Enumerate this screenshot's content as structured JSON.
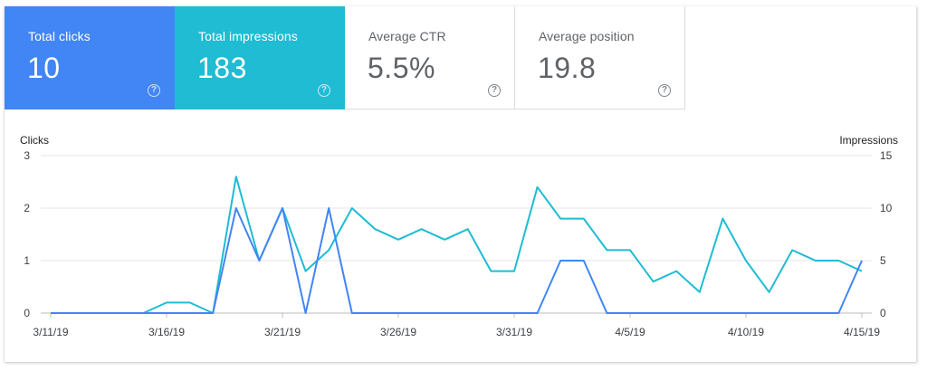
{
  "metrics": [
    {
      "label": "Total clicks",
      "value": "10",
      "color": "#4285f4",
      "active": true
    },
    {
      "label": "Total impressions",
      "value": "183",
      "color": "#1fbcd3",
      "active": true
    },
    {
      "label": "Average CTR",
      "value": "5.5%",
      "active": false
    },
    {
      "label": "Average position",
      "value": "19.8",
      "active": false
    }
  ],
  "help_glyph": "?",
  "help_icon": "help-circle-icon",
  "chart_data": {
    "type": "line",
    "ylabel_left": "Clicks",
    "ylabel_right": "Impressions",
    "ylim_left": [
      0,
      3
    ],
    "ylim_right": [
      0,
      15
    ],
    "yticks_left": [
      "0",
      "1",
      "2",
      "3"
    ],
    "yticks_right": [
      "0",
      "5",
      "10",
      "15"
    ],
    "xtick_labels": [
      "3/11/19",
      "3/16/19",
      "3/21/19",
      "3/26/19",
      "3/31/19",
      "4/5/19",
      "4/10/19",
      "4/15/19"
    ],
    "x": [
      "3/11/19",
      "3/12/19",
      "3/13/19",
      "3/14/19",
      "3/15/19",
      "3/16/19",
      "3/17/19",
      "3/18/19",
      "3/19/19",
      "3/20/19",
      "3/21/19",
      "3/22/19",
      "3/23/19",
      "3/24/19",
      "3/25/19",
      "3/26/19",
      "3/27/19",
      "3/28/19",
      "3/29/19",
      "3/30/19",
      "3/31/19",
      "4/1/19",
      "4/2/19",
      "4/3/19",
      "4/4/19",
      "4/5/19",
      "4/6/19",
      "4/7/19",
      "4/8/19",
      "4/9/19",
      "4/10/19",
      "4/11/19",
      "4/12/19",
      "4/13/19",
      "4/14/19",
      "4/15/19"
    ],
    "grid": true,
    "series": [
      {
        "name": "Clicks",
        "axis": "left",
        "color": "#4285f4",
        "values": [
          0,
          0,
          0,
          0,
          0,
          0,
          0,
          0,
          2,
          1,
          2,
          0,
          2,
          0,
          0,
          0,
          0,
          0,
          0,
          0,
          0,
          0,
          1,
          1,
          0,
          0,
          0,
          0,
          0,
          0,
          0,
          0,
          0,
          0,
          0,
          1
        ]
      },
      {
        "name": "Impressions",
        "axis": "right",
        "color": "#1fbcd3",
        "values": [
          0,
          0,
          0,
          0,
          0,
          1,
          1,
          0,
          13,
          5,
          10,
          4,
          6,
          10,
          8,
          7,
          8,
          7,
          8,
          4,
          4,
          12,
          9,
          9,
          6,
          6,
          3,
          4,
          2,
          9,
          5,
          2,
          6,
          5,
          5,
          4
        ]
      }
    ]
  }
}
